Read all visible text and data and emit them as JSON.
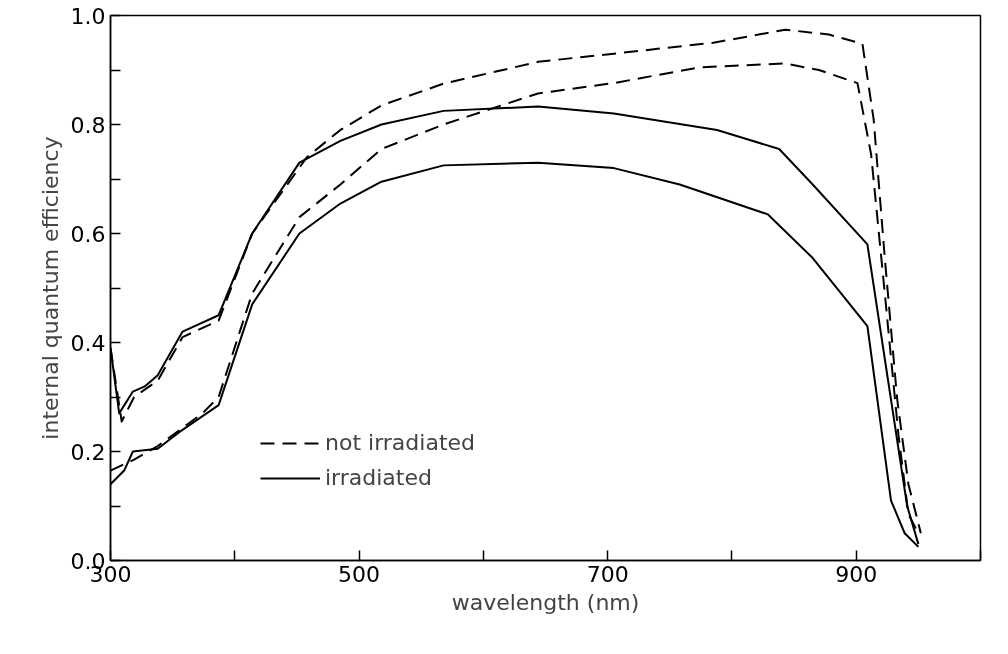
{
  "chart_data": {
    "type": "line",
    "xlabel": "wavelength (nm)",
    "ylabel": "internal quantum efficiency",
    "xlim": [
      300,
      1000
    ],
    "xticks": [
      300,
      {
        "value": 400,
        "label": null
      },
      500,
      {
        "value": 600,
        "label": null
      },
      700,
      {
        "value": 800,
        "label": null
      },
      900,
      {
        "value": 1000,
        "label": null
      }
    ],
    "ylim": [
      0,
      1
    ],
    "yticks": [
      {
        "value": 0,
        "label": "0.0"
      },
      {
        "value": 0.1,
        "label": null
      },
      0.2,
      {
        "value": 0.3,
        "label": null
      },
      0.4,
      {
        "value": 0.5,
        "label": null
      },
      0.6,
      {
        "value": 0.7,
        "label": null
      },
      0.8,
      {
        "value": 0.9,
        "label": null
      },
      {
        "value": 1,
        "label": "1.0"
      }
    ],
    "grid": false,
    "legend": "bottom left",
    "marker": "none",
    "series": [
      {
        "name": "not irradiated",
        "color": "#000000",
        "line_style": "dashed",
        "x": [
          300,
          309,
          319,
          338,
          358,
          387,
          414,
          458,
          485,
          518,
          568,
          644,
          705,
          785,
          843,
          878,
          905,
          914,
          923,
          933,
          942,
          952
        ],
        "values": [
          0.39,
          0.255,
          0.3,
          0.33,
          0.41,
          0.44,
          0.6,
          0.74,
          0.79,
          0.835,
          0.875,
          0.915,
          0.93,
          0.95,
          0.974,
          0.965,
          0.948,
          0.81,
          0.555,
          0.295,
          0.14,
          0.05
        ]
      },
      {
        "color": "#000000",
        "line_style": "dashed",
        "x": [
          300,
          319,
          338,
          374,
          387,
          414,
          452,
          485,
          518,
          568,
          644,
          705,
          774,
          843,
          870,
          901,
          912,
          923,
          934,
          942,
          950
        ],
        "values": [
          0.165,
          0.185,
          0.21,
          0.27,
          0.3,
          0.49,
          0.63,
          0.69,
          0.755,
          0.8,
          0.857,
          0.876,
          0.905,
          0.912,
          0.9,
          0.876,
          0.745,
          0.49,
          0.23,
          0.085,
          0.05
        ]
      },
      {
        "name": "irradiated",
        "color": "#000000",
        "line_style": "solid",
        "x": [
          300,
          307,
          318,
          328,
          338,
          358,
          387,
          414,
          452,
          485,
          518,
          568,
          644,
          705,
          788,
          838,
          865,
          909,
          928,
          941,
          950
        ],
        "values": [
          0.39,
          0.27,
          0.31,
          0.32,
          0.34,
          0.42,
          0.45,
          0.6,
          0.73,
          0.77,
          0.8,
          0.825,
          0.833,
          0.82,
          0.79,
          0.755,
          0.69,
          0.58,
          0.295,
          0.1,
          0.03
        ]
      },
      {
        "color": "#000000",
        "line_style": "solid",
        "x": [
          300,
          311,
          318,
          338,
          355,
          387,
          414,
          452,
          485,
          518,
          568,
          644,
          705,
          758,
          829,
          865,
          909,
          928,
          939,
          950
        ],
        "values": [
          0.14,
          0.165,
          0.2,
          0.205,
          0.235,
          0.285,
          0.47,
          0.6,
          0.655,
          0.695,
          0.725,
          0.73,
          0.72,
          0.69,
          0.635,
          0.555,
          0.43,
          0.11,
          0.05,
          0.025
        ]
      }
    ]
  }
}
